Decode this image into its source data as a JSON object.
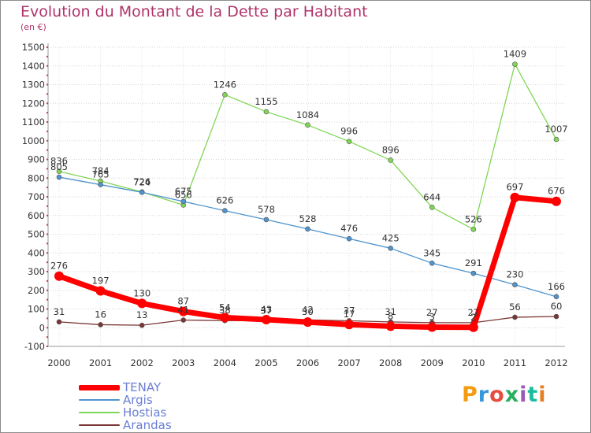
{
  "header": {
    "title": "Evolution du Montant de la Dette par Habitant",
    "unit": "(en €)"
  },
  "logo": {
    "text": "Proxiti",
    "colors": [
      "#f39c12",
      "#3498db",
      "#e74c3c",
      "#27ae60",
      "#9b59b6",
      "#1abc9c",
      "#e67e22"
    ]
  },
  "chart_data": {
    "type": "line",
    "title": "Evolution du Montant de la Dette par Habitant",
    "ylabel": "(en €)",
    "x": [
      "2000",
      "2001",
      "2002",
      "2003",
      "2004",
      "2005",
      "2006",
      "2007",
      "2008",
      "2009",
      "2010",
      "2011",
      "2012"
    ],
    "ylim": [
      -100,
      1500
    ],
    "yticks": [
      -100,
      0,
      100,
      200,
      300,
      400,
      500,
      600,
      700,
      800,
      900,
      1000,
      1100,
      1200,
      1300,
      1400,
      1500
    ],
    "grid": true,
    "legend_position": "bottom-left",
    "series": [
      {
        "name": "TENAY",
        "color": "#ff0000",
        "values": [
          276,
          197,
          130,
          87,
          54,
          43,
          30,
          17,
          8,
          3,
          2,
          697,
          676
        ],
        "labels": [
          "276",
          "197",
          "130",
          "87",
          "54",
          "43",
          "30",
          "17",
          "8",
          "3",
          "2",
          "697",
          "676"
        ]
      },
      {
        "name": "Argis",
        "color": "#4f94cd",
        "values": [
          805,
          765,
          724,
          675,
          626,
          578,
          528,
          476,
          425,
          345,
          291,
          230,
          166
        ],
        "labels": [
          "805",
          "765",
          "724",
          "675",
          "626",
          "578",
          "528",
          "476",
          "425",
          "345",
          "291",
          "230",
          "166"
        ]
      },
      {
        "name": "Hostias",
        "color": "#80d655",
        "values": [
          836,
          784,
          726,
          656,
          1246,
          1155,
          1084,
          996,
          896,
          644,
          526,
          1409,
          1007
        ],
        "labels": [
          "836",
          "784",
          "726",
          "656",
          "1246",
          "1155",
          "1084",
          "996",
          "896",
          "644",
          "526",
          "1409",
          "1007"
        ]
      },
      {
        "name": "Arandas",
        "color": "#7a3535",
        "values": [
          31,
          16,
          13,
          41,
          38,
          37,
          42,
          37,
          31,
          27,
          27,
          56,
          60
        ],
        "labels": [
          "31",
          "16",
          "13",
          "41",
          "38",
          "37",
          "42",
          "37",
          "31",
          "27",
          "27",
          "56",
          "60"
        ]
      }
    ]
  }
}
